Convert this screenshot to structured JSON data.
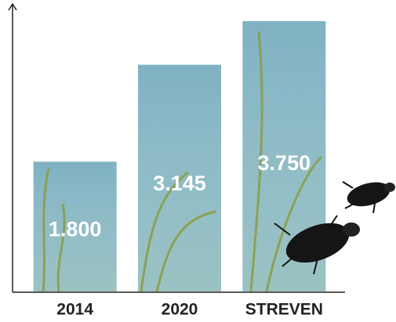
{
  "chart_data": {
    "type": "bar",
    "categories": [
      "2014",
      "2020",
      "STREVEN"
    ],
    "values": [
      1.8,
      3.145,
      3.75
    ],
    "value_labels": [
      "1.800",
      "3.145",
      "3.750"
    ],
    "color": "#79aebf",
    "ylim": [
      0,
      4
    ]
  }
}
